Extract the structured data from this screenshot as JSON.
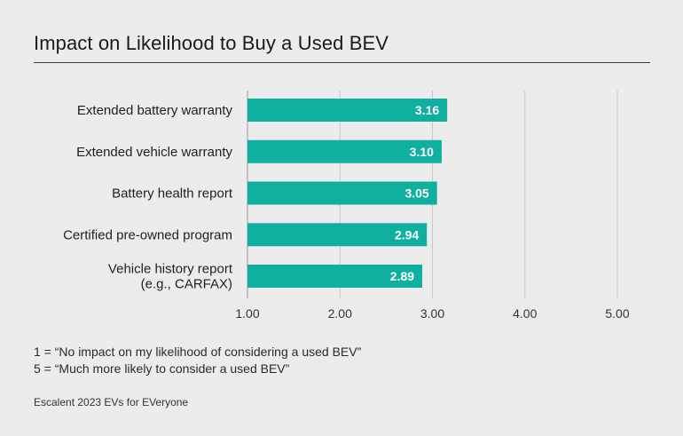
{
  "colors": {
    "bar": "#10b0a0",
    "grid": "#c9c9c9",
    "axis": "#9a9a9a"
  },
  "chart_data": {
    "type": "bar",
    "orientation": "horizontal",
    "title": "Impact on Likelihood to Buy a Used BEV",
    "categories": [
      [
        "Extended battery warranty"
      ],
      [
        "Extended vehicle warranty"
      ],
      [
        "Battery health report"
      ],
      [
        "Certified pre-owned program"
      ],
      [
        "Vehicle history report",
        "(e.g., CARFAX)"
      ]
    ],
    "values": [
      3.16,
      3.1,
      3.05,
      2.94,
      2.89
    ],
    "value_labels": [
      "3.16",
      "3.10",
      "3.05",
      "2.94",
      "2.89"
    ],
    "xlim": [
      1,
      5
    ],
    "ticks": [
      "1.00",
      "2.00",
      "3.00",
      "4.00",
      "5.00"
    ],
    "grid": true,
    "xlabel": "",
    "ylabel": ""
  },
  "notes": [
    "1 = “No impact on my likelihood of considering a used BEV”",
    "5 = “Much more likely to consider a used BEV”"
  ],
  "source": "Escalent 2023 EVs for EVeryone"
}
